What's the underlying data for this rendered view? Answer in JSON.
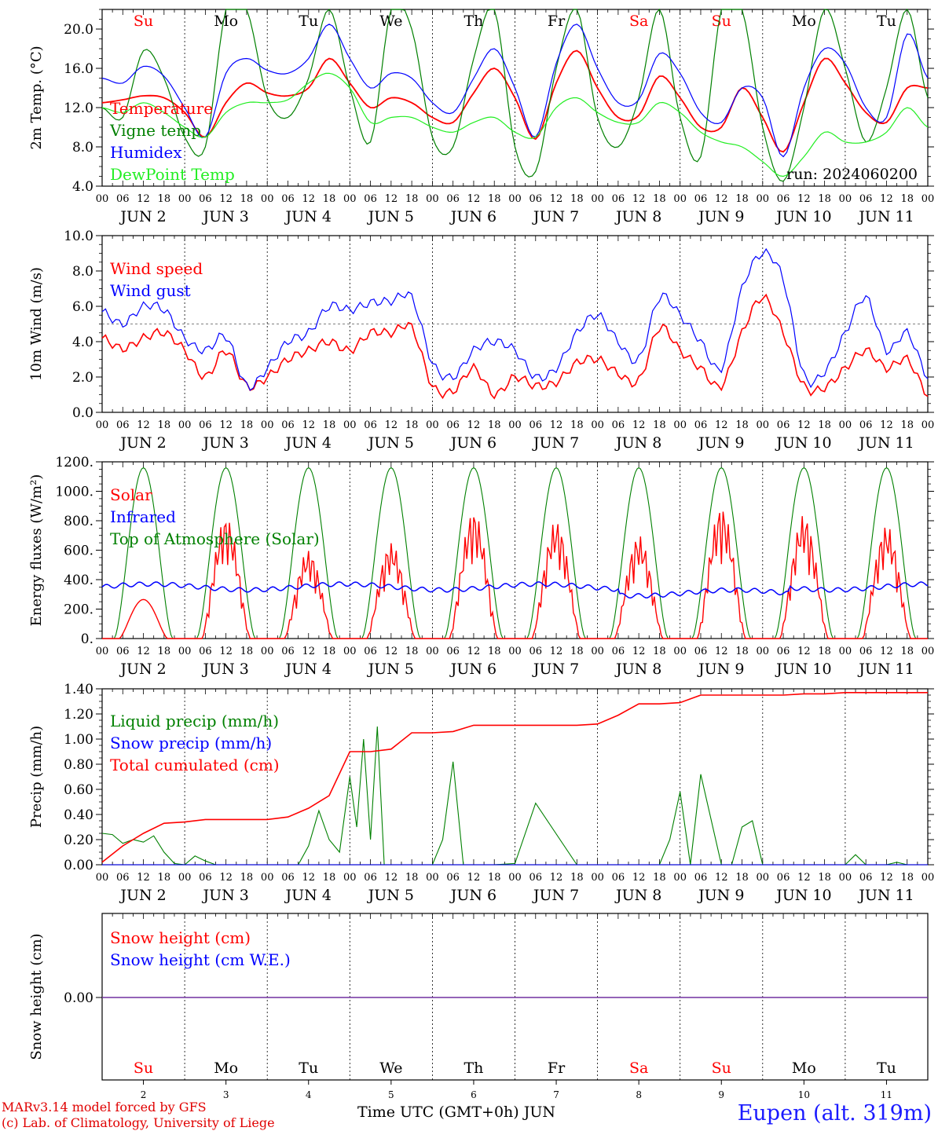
{
  "footer": {
    "credit_line1": "MARv3.14 model forced by GFS",
    "credit_line2": "(c) Lab. of Climatology, University of Liege",
    "xaxis_title": "Time UTC (GMT+0h) JUN",
    "location": "Eupen (alt. 319m)"
  },
  "colors": {
    "red": "#ff0000",
    "blue": "#0000ff",
    "darkgreen": "#008000",
    "lightgreen": "#22ee22",
    "purple": "#7030a0"
  },
  "days": [
    "Su",
    "Mo",
    "Tu",
    "We",
    "Th",
    "Fr",
    "Sa",
    "Su",
    "Mo",
    "Tu"
  ],
  "weekend_days": [
    0,
    6,
    7
  ],
  "date_labels": [
    "JUN  2",
    "JUN  3",
    "JUN  4",
    "JUN  5",
    "JUN  6",
    "JUN  7",
    "JUN  8",
    "JUN  9",
    "JUN 10",
    "JUN 11"
  ],
  "day_numbers": [
    "2",
    "3",
    "4",
    "5",
    "6",
    "7",
    "8",
    "9",
    "10",
    "11"
  ],
  "hour_ticks": [
    "00",
    "06",
    "12",
    "18"
  ],
  "hour_tick_end": "00",
  "chart_data": [
    {
      "type": "line",
      "ylabel": "2m Temp. (°C)",
      "ylim": [
        4,
        22
      ],
      "yticks": [
        "4.0",
        "8.0",
        "12.0",
        "16.0",
        "20.0"
      ],
      "annotation": "run: 2024060200",
      "x_unit": "hours since 2024-06-02 00 UTC",
      "series": [
        {
          "name": "Temperature",
          "color": "#ff0000",
          "x": [
            0,
            6,
            12,
            18,
            24,
            30,
            36,
            42,
            48,
            54,
            60,
            66,
            72,
            78,
            84,
            90,
            96,
            102,
            108,
            114,
            120,
            126,
            132,
            138,
            144,
            150,
            156,
            162,
            168,
            174,
            180,
            186,
            192,
            198,
            204,
            210,
            216,
            222,
            228,
            234,
            240
          ],
          "y": [
            12.5,
            12.8,
            13.2,
            13.0,
            11.5,
            9.0,
            12.5,
            14.5,
            13.5,
            13.2,
            14.0,
            17.0,
            14.5,
            12.0,
            13.0,
            12.5,
            11.0,
            10.5,
            13.5,
            16.0,
            13.0,
            8.8,
            14.5,
            17.8,
            14.0,
            11.0,
            11.2,
            15.2,
            13.0,
            10.0,
            10.0,
            14.0,
            11.0,
            7.5,
            12.5,
            17.0,
            14.5,
            11.5,
            10.5,
            14.0,
            14.0
          ]
        },
        {
          "name": "Vigne temp",
          "color": "#008000",
          "x": [
            0,
            6,
            12,
            18,
            24,
            30,
            36,
            42,
            48,
            54,
            60,
            66,
            72,
            78,
            84,
            90,
            96,
            102,
            108,
            114,
            120,
            126,
            132,
            138,
            144,
            150,
            156,
            162,
            168,
            174,
            180,
            186,
            192,
            198,
            204,
            210,
            216,
            222,
            228,
            234,
            240
          ],
          "y": [
            12.0,
            11.0,
            17.8,
            15.0,
            9.0,
            8.0,
            22.0,
            22.0,
            13.0,
            11.0,
            15.0,
            22.0,
            14.0,
            8.5,
            22.0,
            20.0,
            9.0,
            8.0,
            17.0,
            22.0,
            8.0,
            5.5,
            16.0,
            22.0,
            11.0,
            8.0,
            13.0,
            22.0,
            11.0,
            7.0,
            22.0,
            22.0,
            10.0,
            4.5,
            12.0,
            22.0,
            16.0,
            8.5,
            14.0,
            22.0,
            13.0
          ]
        },
        {
          "name": "Humidex",
          "color": "#0000ff",
          "x": [
            0,
            6,
            12,
            18,
            24,
            30,
            36,
            42,
            48,
            54,
            60,
            66,
            72,
            78,
            84,
            90,
            96,
            102,
            108,
            114,
            120,
            126,
            132,
            138,
            144,
            150,
            156,
            162,
            168,
            174,
            180,
            186,
            192,
            198,
            204,
            210,
            216,
            222,
            228,
            234,
            240
          ],
          "y": [
            15.0,
            14.5,
            16.2,
            15.2,
            12.0,
            9.0,
            15.5,
            17.0,
            15.8,
            15.5,
            17.0,
            20.5,
            17.0,
            14.0,
            15.5,
            15.0,
            12.5,
            11.5,
            15.0,
            18.0,
            14.0,
            9.0,
            16.5,
            20.5,
            16.0,
            12.5,
            12.8,
            17.5,
            15.5,
            11.5,
            10.5,
            14.0,
            13.0,
            7.0,
            14.0,
            18.0,
            16.5,
            12.0,
            11.0,
            19.5,
            15.0
          ]
        },
        {
          "name": "DewPoint Temp",
          "color": "#22ee22",
          "x": [
            0,
            6,
            12,
            18,
            24,
            30,
            36,
            42,
            48,
            54,
            60,
            66,
            72,
            78,
            84,
            90,
            96,
            102,
            108,
            114,
            120,
            126,
            132,
            138,
            144,
            150,
            156,
            162,
            168,
            174,
            180,
            186,
            192,
            198,
            204,
            210,
            216,
            222,
            228,
            234,
            240
          ],
          "y": [
            12.0,
            11.5,
            12.5,
            11.5,
            10.0,
            9.0,
            11.5,
            12.5,
            12.5,
            12.8,
            14.5,
            15.5,
            14.0,
            10.5,
            11.0,
            11.0,
            10.0,
            9.5,
            10.5,
            11.0,
            9.5,
            9.0,
            12.0,
            13.0,
            11.5,
            10.5,
            10.5,
            12.5,
            11.5,
            9.5,
            8.5,
            8.0,
            6.5,
            5.0,
            7.0,
            9.5,
            8.5,
            8.5,
            9.5,
            12.0,
            10.0
          ]
        }
      ]
    },
    {
      "type": "line",
      "ylabel": "10m Wind (m/s)",
      "ylim": [
        0,
        10
      ],
      "yticks": [
        "0.0",
        "2.0",
        "4.0",
        "6.0",
        "8.0",
        "10.0"
      ],
      "reference_line": 5,
      "x_unit": "hours since 2024-06-02 00 UTC",
      "series": [
        {
          "name": "Wind speed",
          "color": "#ff0000",
          "x": [
            0,
            6,
            12,
            18,
            24,
            30,
            36,
            42,
            48,
            54,
            60,
            66,
            72,
            78,
            84,
            90,
            96,
            102,
            108,
            114,
            120,
            126,
            132,
            138,
            144,
            150,
            156,
            162,
            168,
            174,
            180,
            186,
            192,
            198,
            204,
            210,
            216,
            222,
            228,
            234,
            240
          ],
          "y": [
            4.2,
            3.6,
            4.2,
            4.5,
            3.5,
            2.0,
            3.5,
            1.5,
            2.0,
            3.0,
            3.5,
            4.0,
            3.5,
            4.5,
            4.5,
            4.8,
            1.5,
            1.2,
            2.5,
            1.0,
            2.0,
            1.5,
            1.7,
            2.8,
            3.0,
            2.2,
            1.8,
            4.8,
            3.5,
            2.5,
            1.5,
            4.5,
            6.5,
            4.5,
            1.5,
            1.4,
            2.5,
            3.5,
            2.5,
            3.0,
            1.0
          ]
        },
        {
          "name": "Wind gust",
          "color": "#0000ff",
          "x": [
            0,
            6,
            12,
            18,
            24,
            30,
            36,
            42,
            48,
            54,
            60,
            66,
            72,
            78,
            84,
            90,
            96,
            102,
            108,
            114,
            120,
            126,
            132,
            138,
            144,
            150,
            156,
            162,
            168,
            174,
            180,
            186,
            192,
            198,
            204,
            210,
            216,
            222,
            228,
            234,
            240
          ],
          "y": [
            5.7,
            5.0,
            6.0,
            5.8,
            4.2,
            3.5,
            4.3,
            1.5,
            2.5,
            4.0,
            4.5,
            6.0,
            5.8,
            6.2,
            6.3,
            6.5,
            2.8,
            2.0,
            3.5,
            4.0,
            3.5,
            2.0,
            2.5,
            4.5,
            5.5,
            4.0,
            3.0,
            6.5,
            5.5,
            4.0,
            2.5,
            7.0,
            9.0,
            7.5,
            2.1,
            2.3,
            4.5,
            6.5,
            3.5,
            4.5,
            2.0
          ]
        }
      ]
    },
    {
      "type": "line",
      "ylabel": "Energy fluxes (W/m²)",
      "ylim": [
        0,
        1200
      ],
      "yticks": [
        "0.",
        "200.",
        "400.",
        "600.",
        "800.",
        "1000.",
        "1200."
      ],
      "x_unit": "hours since 2024-06-02 00 UTC",
      "toa_peak": 1160,
      "solar_peaks": [
        265,
        830,
        600,
        650,
        870,
        800,
        700,
        900,
        840,
        770
      ],
      "infrared_level": 350,
      "series": [
        {
          "name": "Solar",
          "color": "#ff0000"
        },
        {
          "name": "Infrared",
          "color": "#0000ff"
        },
        {
          "name": "Top of Atmosphere (Solar)",
          "color": "#008000"
        }
      ]
    },
    {
      "type": "line",
      "ylabel": "Precip (mm/h)",
      "ylim": [
        0,
        1.4
      ],
      "yticks": [
        "0.00",
        "0.20",
        "0.40",
        "0.60",
        "0.80",
        "1.00",
        "1.20",
        "1.40"
      ],
      "x_unit": "hours since 2024-06-02 00 UTC",
      "series": [
        {
          "name": "Liquid precip (mm/h)",
          "color": "#008000",
          "x": [
            0,
            3,
            6,
            9,
            12,
            15,
            18,
            21,
            24,
            27,
            30,
            33,
            36,
            42,
            48,
            54,
            57,
            60,
            63,
            66,
            69,
            72,
            74,
            76,
            78,
            80,
            82,
            84,
            96,
            99,
            102,
            105,
            108,
            111,
            114,
            120,
            126,
            138,
            144,
            150,
            162,
            165,
            168,
            171,
            174,
            180,
            183,
            186,
            189,
            192,
            204,
            210,
            216,
            219,
            222,
            228,
            231,
            234,
            240
          ],
          "y": [
            0.25,
            0.24,
            0.17,
            0.2,
            0.18,
            0.23,
            0.1,
            0.01,
            0.0,
            0.07,
            0.03,
            0.0,
            0.0,
            0.0,
            0.0,
            0.0,
            0.0,
            0.15,
            0.43,
            0.2,
            0.1,
            0.7,
            0.3,
            1.0,
            0.2,
            1.1,
            0.0,
            0.0,
            0.0,
            0.2,
            0.82,
            0.0,
            0.0,
            0.0,
            0.0,
            0.01,
            0.49,
            0.0,
            0.0,
            0.0,
            0.0,
            0.2,
            0.58,
            0.0,
            0.72,
            0.0,
            0.0,
            0.3,
            0.35,
            0.0,
            0.0,
            0.0,
            0.0,
            0.08,
            0.0,
            0.0,
            0.02,
            0.0,
            0.0
          ]
        },
        {
          "name": "Snow precip (mm/h)",
          "color": "#0000ff",
          "x": [
            0,
            240
          ],
          "y": [
            0.0,
            0.0
          ]
        },
        {
          "name": "Total cumulated (cm)",
          "color": "#ff0000",
          "x": [
            0,
            6,
            12,
            18,
            24,
            30,
            36,
            42,
            48,
            54,
            60,
            66,
            72,
            78,
            84,
            90,
            96,
            102,
            108,
            114,
            120,
            126,
            132,
            138,
            144,
            150,
            156,
            162,
            168,
            174,
            180,
            186,
            192,
            198,
            204,
            210,
            216,
            222,
            228,
            234,
            240
          ],
          "y": [
            0.02,
            0.15,
            0.25,
            0.33,
            0.34,
            0.36,
            0.36,
            0.36,
            0.36,
            0.38,
            0.45,
            0.55,
            0.9,
            0.9,
            0.92,
            1.05,
            1.05,
            1.06,
            1.11,
            1.11,
            1.11,
            1.11,
            1.11,
            1.11,
            1.12,
            1.19,
            1.28,
            1.28,
            1.29,
            1.35,
            1.35,
            1.35,
            1.35,
            1.35,
            1.36,
            1.36,
            1.37,
            1.37,
            1.37,
            1.37,
            1.37
          ]
        }
      ]
    },
    {
      "type": "line",
      "ylabel": "Snow height (cm)",
      "yticks": [
        "0.00"
      ],
      "x_unit": "hours since 2024-06-02 00 UTC",
      "series": [
        {
          "name": "Snow height (cm)",
          "color": "#ff0000",
          "x": [
            0,
            240
          ],
          "y": [
            0.0,
            0.0
          ]
        },
        {
          "name": "Snow height (cm W.E.)",
          "color": "#0000ff",
          "x": [
            0,
            240
          ],
          "y": [
            0.0,
            0.0
          ]
        }
      ]
    }
  ]
}
